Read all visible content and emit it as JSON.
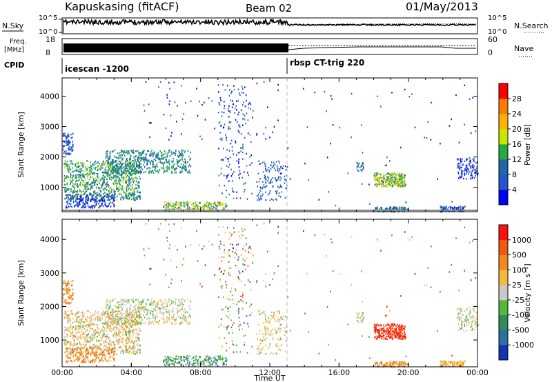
{
  "header": {
    "station": "Kapuskasing (fitACF)",
    "beam": "Beam 02",
    "date": "01/May/2013"
  },
  "params": {
    "nsky_label": "N.Sky",
    "nsearch_label": "N.Search",
    "freq_label_1": "Freq.",
    "freq_label_2": "[MHz]",
    "nave_label": "Nave",
    "cpid_label": "CPID",
    "left_ticks_top": [
      "10^5",
      "10^0"
    ],
    "right_ticks_top": [
      "10^5",
      "10^0"
    ],
    "freq_ticks": [
      "18",
      "8"
    ],
    "nave_ticks": [
      "60",
      "0"
    ],
    "cpid_segments": [
      {
        "label": "icescan -1200",
        "start_hour": 0,
        "end_hour": 13
      },
      {
        "label": "rbsp CT-trig 220",
        "start_hour": 13,
        "end_hour": 24
      }
    ]
  },
  "chart_data": [
    {
      "type": "heatmap",
      "ylabel": "Slant Range [km]",
      "ylim": [
        200,
        4600
      ],
      "yticks": [
        1000,
        2000,
        3000,
        4000
      ],
      "xlim": [
        0,
        24
      ],
      "colorbar": {
        "label": "Power [dB]",
        "ticks": [
          "4",
          "8",
          "12",
          "16",
          "20",
          "24",
          "28"
        ],
        "colors": [
          "#0000ff",
          "#2255cc",
          "#2266aa",
          "#22aa44",
          "#c8e600",
          "#ffb000",
          "#ff7a00",
          "#ff0000"
        ]
      }
    },
    {
      "type": "heatmap",
      "ylabel": "Slant Range [km]",
      "ylim": [
        200,
        4600
      ],
      "yticks": [
        1000,
        2000,
        3000,
        4000
      ],
      "xlim": [
        0,
        24
      ],
      "xlabel": "Time UT",
      "xticks": [
        "00:00",
        "04:00",
        "08:00",
        "12:00",
        "16:00",
        "20:00",
        "00:00"
      ],
      "colorbar": {
        "label": "Velocity [m s⁻¹]",
        "ticks": [
          "1000",
          "500",
          "100",
          "25",
          "-25",
          "-100",
          "-500",
          "-1000"
        ],
        "colors": [
          "#1533b0",
          "#2b6ea8",
          "#2d8c5a",
          "#55b838",
          "#c8c8c8",
          "#f5b942",
          "#f08a18",
          "#f05a10",
          "#ff1010"
        ]
      }
    }
  ],
  "colors": {
    "frame": "#000000",
    "ground": "#888888",
    "text": "#000000"
  }
}
